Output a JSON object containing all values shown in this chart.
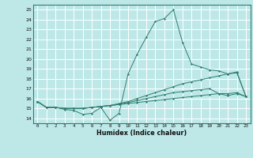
{
  "xlabel": "Humidex (Indice chaleur)",
  "bg_color": "#bee8e8",
  "grid_color": "#ffffff",
  "line_color": "#2e7d6e",
  "xlim": [
    -0.5,
    23.5
  ],
  "ylim": [
    13.5,
    25.5
  ],
  "yticks": [
    14,
    15,
    16,
    17,
    18,
    19,
    20,
    21,
    22,
    23,
    24,
    25
  ],
  "xticks": [
    0,
    1,
    2,
    3,
    4,
    5,
    6,
    7,
    8,
    9,
    10,
    11,
    12,
    13,
    14,
    15,
    16,
    17,
    18,
    19,
    20,
    21,
    22,
    23
  ],
  "line1": [
    15.7,
    15.1,
    15.1,
    14.9,
    14.8,
    14.4,
    14.5,
    15.1,
    13.8,
    14.5,
    18.5,
    20.5,
    22.2,
    23.8,
    24.1,
    25.0,
    21.7,
    19.5,
    19.2,
    18.9,
    18.8,
    18.5,
    18.7,
    16.2
  ],
  "line2": [
    15.7,
    15.1,
    15.1,
    15.0,
    15.0,
    15.0,
    15.1,
    15.2,
    15.3,
    15.5,
    15.7,
    16.0,
    16.3,
    16.6,
    16.9,
    17.2,
    17.5,
    17.7,
    17.9,
    18.1,
    18.3,
    18.5,
    18.6,
    16.2
  ],
  "line3": [
    15.7,
    15.1,
    15.1,
    15.0,
    15.0,
    15.0,
    15.1,
    15.2,
    15.3,
    15.4,
    15.5,
    15.6,
    15.7,
    15.8,
    15.9,
    16.0,
    16.1,
    16.2,
    16.3,
    16.4,
    16.5,
    16.5,
    16.6,
    16.2
  ],
  "line4": [
    15.7,
    15.1,
    15.1,
    15.0,
    15.0,
    15.0,
    15.1,
    15.2,
    15.3,
    15.4,
    15.6,
    15.8,
    16.0,
    16.2,
    16.4,
    16.6,
    16.7,
    16.8,
    16.9,
    17.0,
    16.5,
    16.3,
    16.5,
    16.2
  ]
}
